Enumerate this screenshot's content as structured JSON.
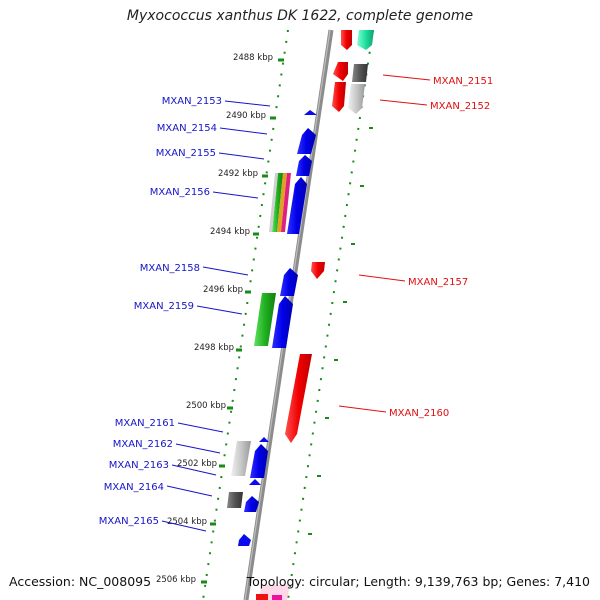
{
  "title": "Myxococcus xanthus DK 1622, complete genome",
  "footer": {
    "accession": "Accession: NC_008095",
    "summary": "Topology: circular; Length: 9,139,763 bp; Genes: 7,410"
  },
  "scale_labels": [
    "2488 kbp",
    "2490 kbp",
    "2492 kbp",
    "2494 kbp",
    "2496 kbp",
    "2498 kbp",
    "2500 kbp",
    "2502 kbp",
    "2504 kbp",
    "2506 kbp"
  ],
  "genes_minus": [
    "MXAN_2153",
    "MXAN_2154",
    "MXAN_2155",
    "MXAN_2156",
    "MXAN_2158",
    "MXAN_2159",
    "MXAN_2161",
    "MXAN_2162",
    "MXAN_2163",
    "MXAN_2164",
    "MXAN_2165"
  ],
  "genes_plus": [
    "MXAN_2151",
    "MXAN_2152",
    "MXAN_2157",
    "MXAN_2160"
  ],
  "colors": {
    "minus_label": "#1515c8",
    "plus_label": "#e01010",
    "minus_gene": "#1010f0",
    "plus_gene": "#f21010",
    "backbone": "#8c8c8c",
    "ticks": "#1a8a1a"
  }
}
